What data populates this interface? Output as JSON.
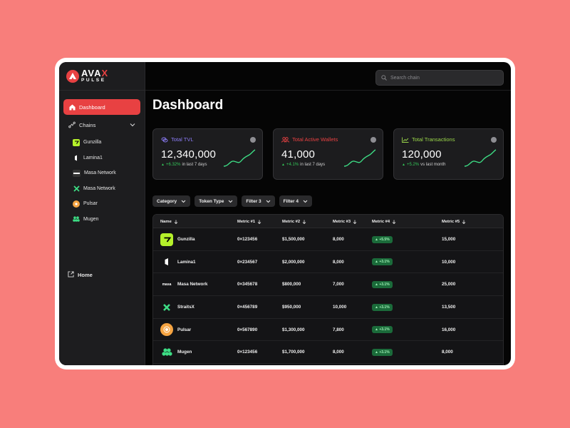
{
  "brand": {
    "top_a": "AVA",
    "top_b": "X",
    "bottom": "PULSE"
  },
  "search": {
    "placeholder": "Search chain"
  },
  "sidebar": {
    "dashboard": "Dashboard",
    "chains": "Chains",
    "chain_items": [
      {
        "label": "Gunzilla",
        "color": "#b5f12b"
      },
      {
        "label": "Lamina1",
        "color": "#ffffff"
      },
      {
        "label": "Masa Network",
        "color": "#ffffff"
      },
      {
        "label": "Masa Network",
        "color": "#3ddc84"
      },
      {
        "label": "Pulsar",
        "color": "#f5a442"
      },
      {
        "label": "Mugen",
        "color": "#3ddc84"
      }
    ],
    "home": "Home"
  },
  "page_title": "Dashboard",
  "cards": [
    {
      "title": "Total TVL",
      "value": "12,340,000",
      "pct": "+6.32%",
      "period": "in last 7 days",
      "color": "#8b7cf6"
    },
    {
      "title": "Total Active Wallets",
      "value": "41,000",
      "pct": "+4.1%",
      "period": "in last 7 days",
      "color": "#e84142"
    },
    {
      "title": "Total Transactions",
      "value": "120,000",
      "pct": "+5.2%",
      "period": "vs last month",
      "color": "#9ad64a"
    }
  ],
  "filters": [
    "Category",
    "Token Type",
    "Filter 3",
    "Filter 4"
  ],
  "table": {
    "headers": [
      "Name",
      "Metric #1",
      "Metric #2",
      "Metric #3",
      "Metric #4",
      "Metric #5"
    ],
    "rows": [
      {
        "name": "Gunzilla",
        "m1": "0×123456",
        "m2": "$1,500,000",
        "m3": "8,000",
        "m4": "+5.5%",
        "m5": "15,000"
      },
      {
        "name": "Lamina1",
        "m1": "0×234567",
        "m2": "$2,000,000",
        "m3": "8,000",
        "m4": "+3.1%",
        "m5": "10,000"
      },
      {
        "name": "Masa Network",
        "m1": "0×345678",
        "m2": "$800,000",
        "m3": "7,000",
        "m4": "+3.1%",
        "m5": "25,000"
      },
      {
        "name": "StraitsX",
        "m1": "0×456789",
        "m2": "$950,000",
        "m3": "10,000",
        "m4": "+3.1%",
        "m5": "13,500"
      },
      {
        "name": "Pulsar",
        "m1": "0×567890",
        "m2": "$1,300,000",
        "m3": "7,800",
        "m4": "+3.1%",
        "m5": "16,000"
      },
      {
        "name": "Mugen",
        "m1": "0×123456",
        "m2": "$1,700,000",
        "m3": "8,000",
        "m4": "+3.1%",
        "m5": "8,000"
      }
    ]
  },
  "row_logo_text": {
    "masa": "masa"
  }
}
